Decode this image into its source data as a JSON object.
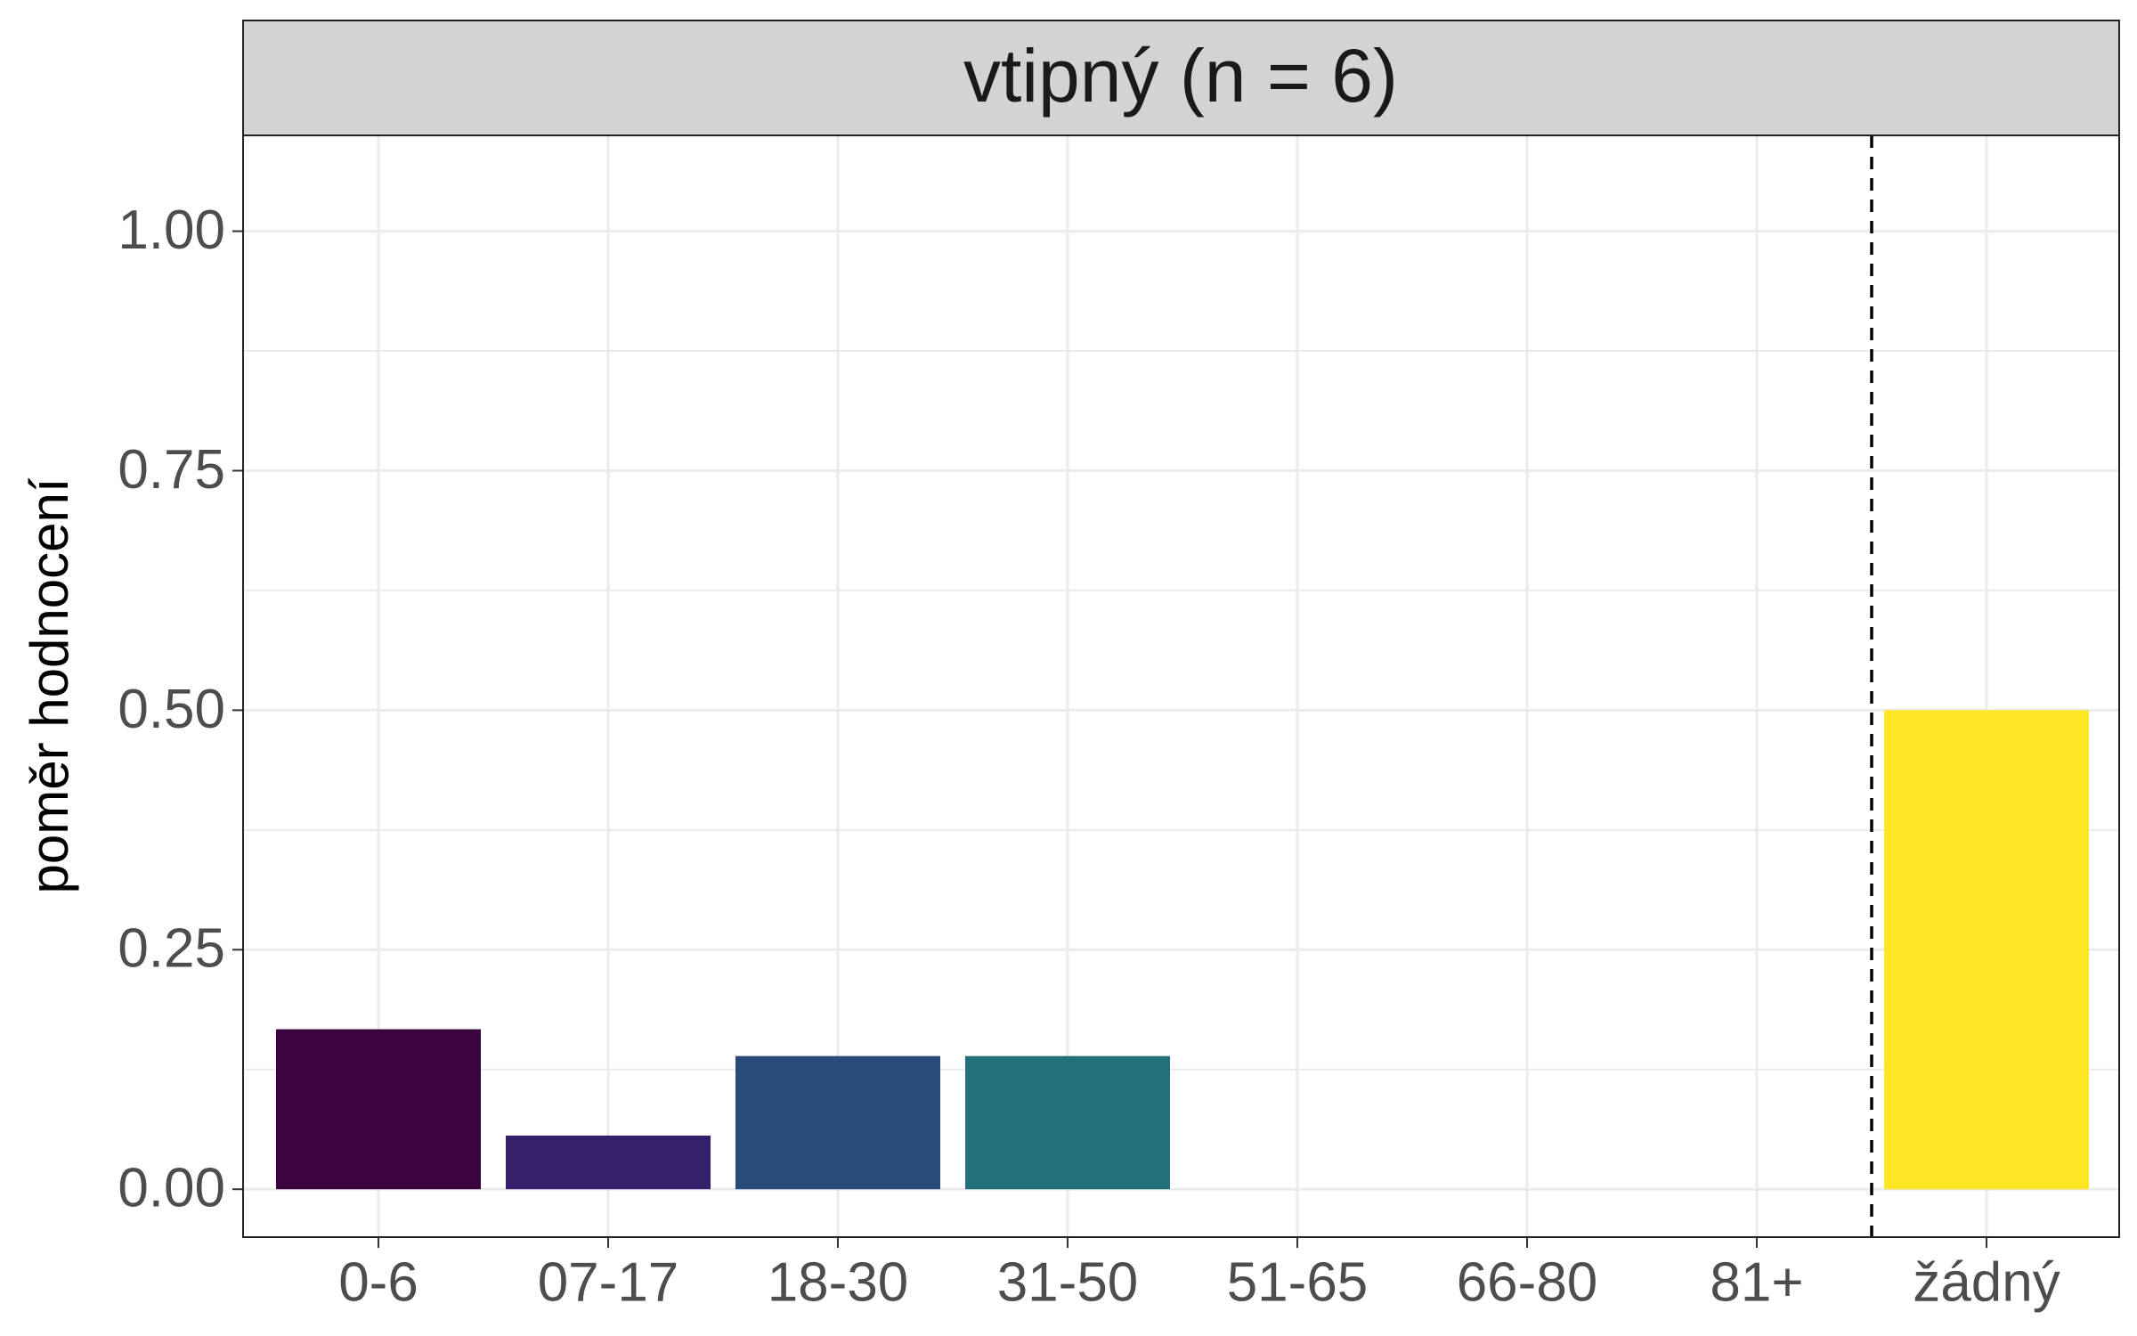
{
  "chart_data": {
    "type": "bar",
    "title": "vtipný (n = 6)",
    "y_label": "poměr hodnocení",
    "categories": [
      "0-6",
      "07-17",
      "18-30",
      "31-50",
      "51-65",
      "66-80",
      "81+",
      "žádný"
    ],
    "values": [
      0.167,
      0.056,
      0.139,
      0.139,
      0,
      0,
      0,
      0.5
    ],
    "colors": [
      "#3b0440",
      "#35216b",
      "#2a4a7a",
      "#21707a",
      "#1fa187",
      "#4ac16d",
      "#9fda3a",
      "#fde725"
    ],
    "ylim": [
      -0.05,
      1.1
    ],
    "yticks": [
      {
        "value": 0,
        "label": "0.00"
      },
      {
        "value": 0.25,
        "label": "0.25"
      },
      {
        "value": 0.5,
        "label": "0.50"
      },
      {
        "value": 0.75,
        "label": "0.75"
      },
      {
        "value": 1,
        "label": "1.00"
      }
    ],
    "grid": true
  }
}
